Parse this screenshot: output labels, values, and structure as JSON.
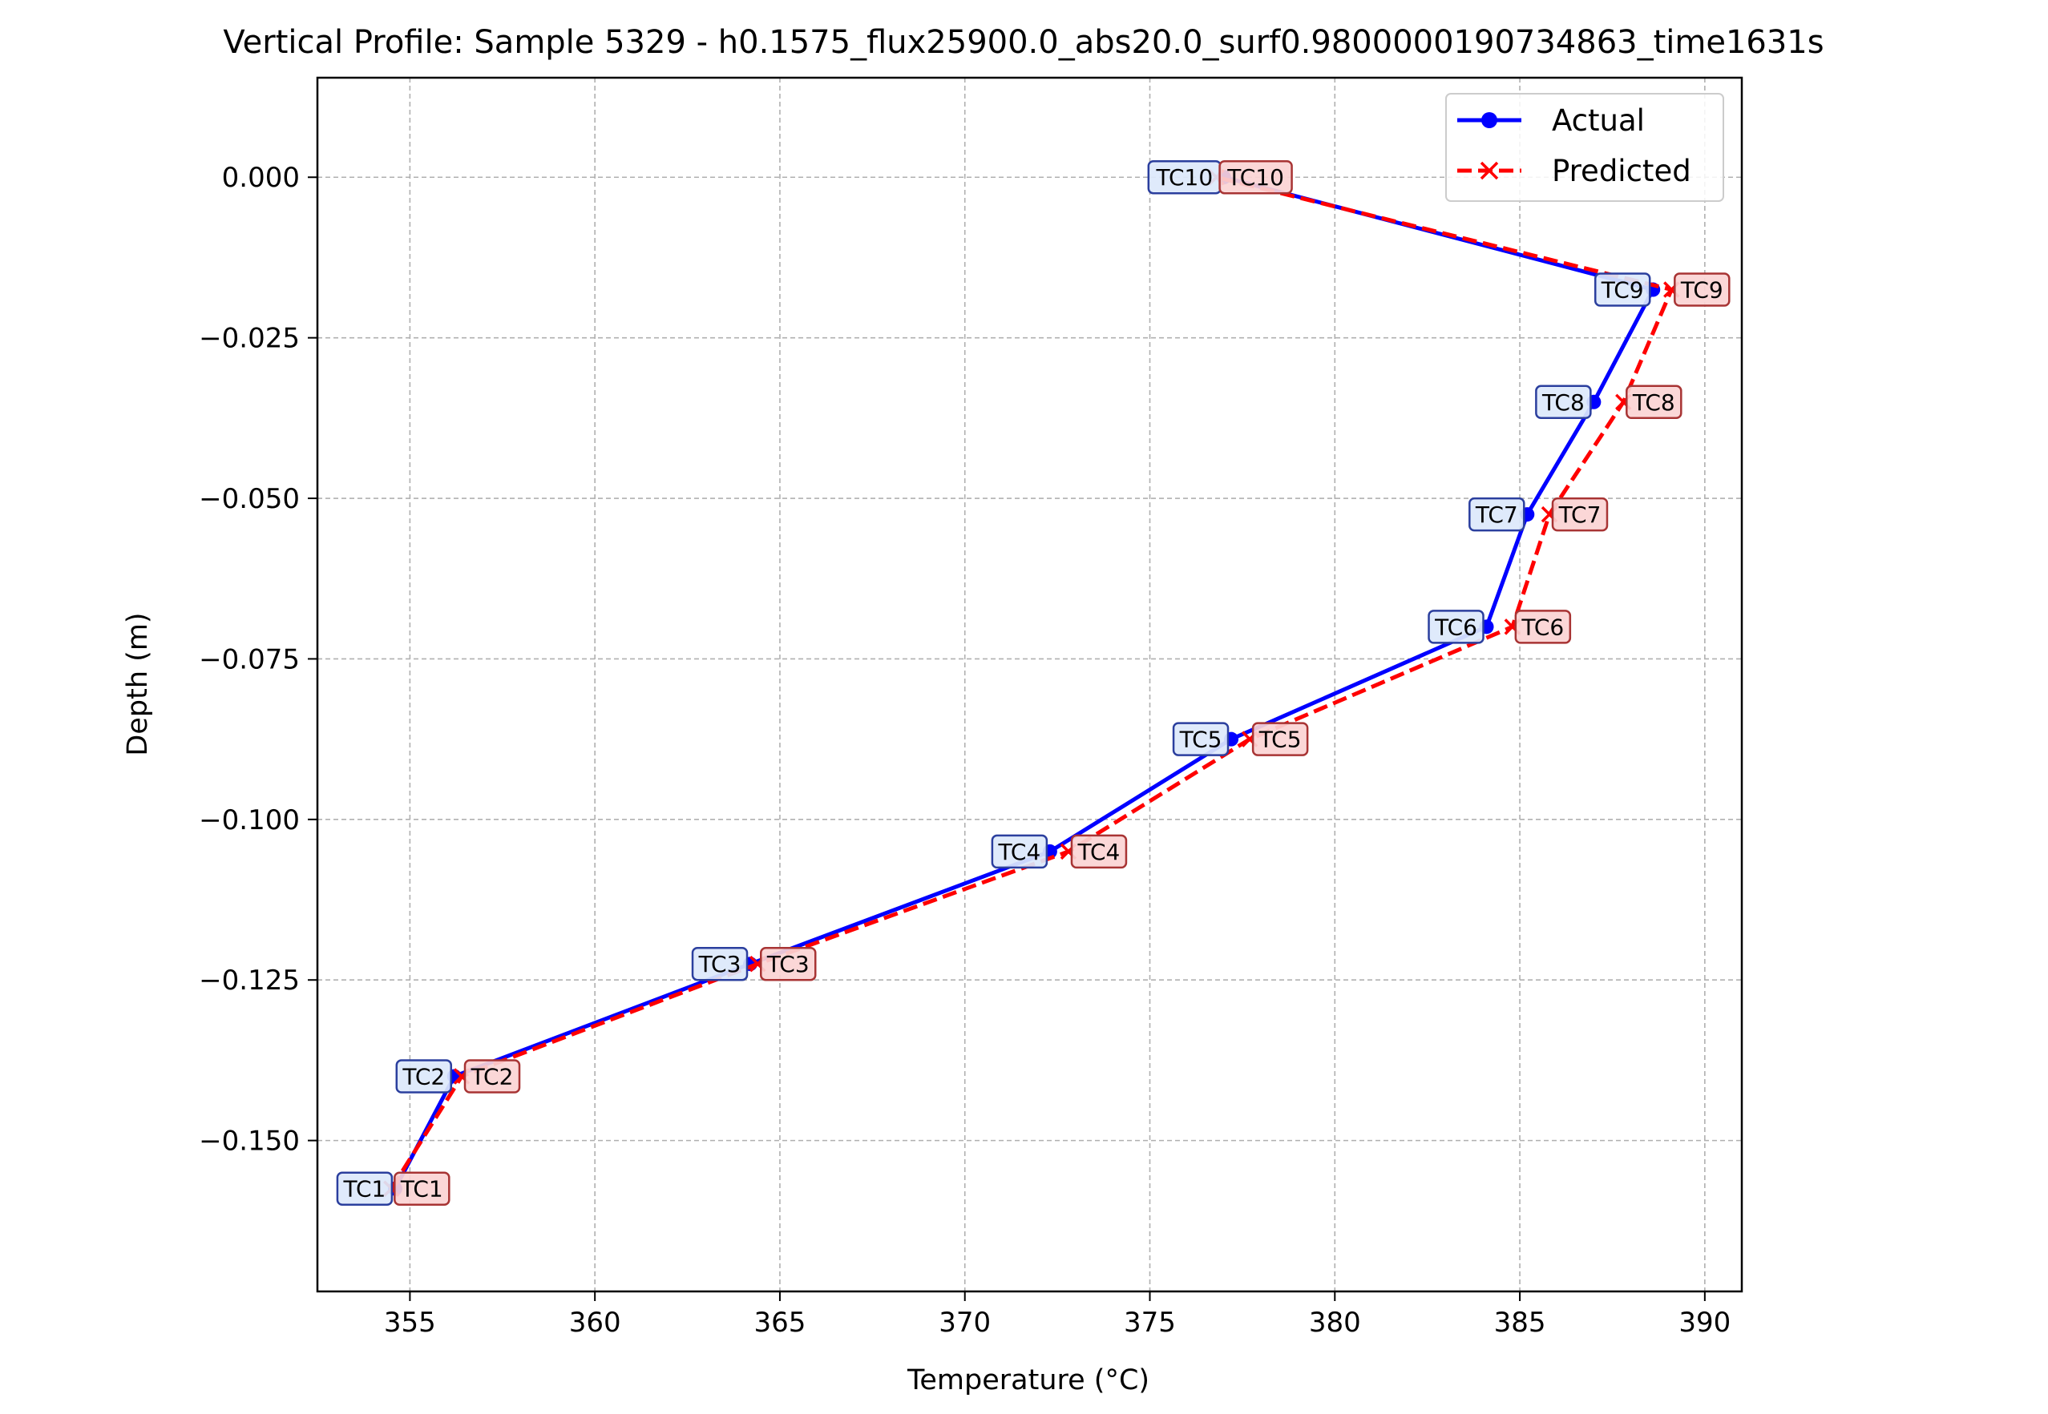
{
  "chart_data": {
    "type": "line",
    "title": "Vertical Profile: Sample 5329 - h0.1575_flux25900.0_abs20.0_surf0.9800000190734863_time1631s",
    "xlabel": "Temperature (°C)",
    "ylabel": "Depth (m)",
    "xlim": [
      352.5,
      391.0
    ],
    "ylim": [
      -0.1735,
      0.0155
    ],
    "xticks": [
      355,
      360,
      365,
      370,
      375,
      380,
      385,
      390
    ],
    "xtick_labels": [
      "355",
      "360",
      "365",
      "370",
      "375",
      "380",
      "385",
      "390"
    ],
    "yticks": [
      0.0,
      -0.025,
      -0.05,
      -0.075,
      -0.1,
      -0.125,
      -0.15
    ],
    "ytick_labels": [
      "0.000",
      "−0.025",
      "−0.050",
      "−0.075",
      "−0.100",
      "−0.125",
      "−0.150"
    ],
    "grid": true,
    "legend_position": "top-right",
    "series": [
      {
        "name": "Actual",
        "color": "#0000ff",
        "marker": "circle",
        "linestyle": "solid",
        "label_fill": "#dce8fb",
        "label_edge": "#2b3f9e",
        "points": [
          {
            "label": "TC1",
            "x": 354.6,
            "y": -0.1575
          },
          {
            "label": "TC2",
            "x": 356.2,
            "y": -0.14
          },
          {
            "label": "TC3",
            "x": 364.2,
            "y": -0.1225
          },
          {
            "label": "TC4",
            "x": 372.3,
            "y": -0.105
          },
          {
            "label": "TC5",
            "x": 377.2,
            "y": -0.0875
          },
          {
            "label": "TC6",
            "x": 384.1,
            "y": -0.07
          },
          {
            "label": "TC7",
            "x": 385.2,
            "y": -0.0525
          },
          {
            "label": "TC8",
            "x": 387.0,
            "y": -0.035
          },
          {
            "label": "TC9",
            "x": 388.6,
            "y": -0.0175
          },
          {
            "label": "TC10",
            "x": 377.0,
            "y": 0.0
          }
        ]
      },
      {
        "name": "Predicted",
        "color": "#ff0000",
        "marker": "x",
        "linestyle": "dashed",
        "label_fill": "#fbd4d4",
        "label_edge": "#a83434",
        "points": [
          {
            "label": "TC1",
            "x": 354.5,
            "y": -0.1575
          },
          {
            "label": "TC2",
            "x": 356.4,
            "y": -0.14
          },
          {
            "label": "TC3",
            "x": 364.4,
            "y": -0.1225
          },
          {
            "label": "TC4",
            "x": 372.8,
            "y": -0.105
          },
          {
            "label": "TC5",
            "x": 377.7,
            "y": -0.0875
          },
          {
            "label": "TC6",
            "x": 384.8,
            "y": -0.07
          },
          {
            "label": "TC7",
            "x": 385.8,
            "y": -0.0525
          },
          {
            "label": "TC8",
            "x": 387.8,
            "y": -0.035
          },
          {
            "label": "TC9",
            "x": 389.1,
            "y": -0.0175
          },
          {
            "label": "TC10",
            "x": 376.8,
            "y": 0.0
          }
        ]
      }
    ]
  }
}
